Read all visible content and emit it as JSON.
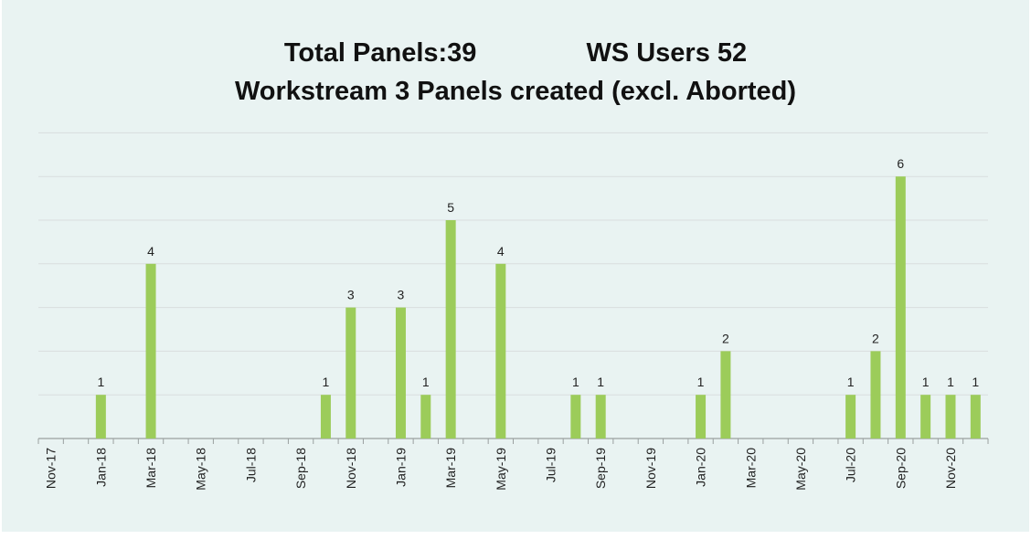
{
  "title": {
    "total_panels": "Total Panels:39",
    "ws_users": "WS Users 52",
    "subtitle": "Workstream 3 Panels created (excl. Aborted)"
  },
  "colors": {
    "bar": "#9ccc5a",
    "grid": "#d9dede",
    "axis": "#9aa0a0",
    "text": "#222222"
  },
  "chart_data": {
    "type": "bar",
    "title": "Workstream 3 Panels created (excl. Aborted)",
    "xlabel": "",
    "ylabel": "",
    "ylim": [
      0,
      7
    ],
    "grid": true,
    "legend": "none",
    "categories": [
      "Nov-17",
      "Dec-17",
      "Jan-18",
      "Feb-18",
      "Mar-18",
      "Apr-18",
      "May-18",
      "Jun-18",
      "Jul-18",
      "Aug-18",
      "Sep-18",
      "Oct-18",
      "Nov-18",
      "Dec-18",
      "Jan-19",
      "Feb-19",
      "Mar-19",
      "Apr-19",
      "May-19",
      "Jun-19",
      "Jul-19",
      "Aug-19",
      "Sep-19",
      "Oct-19",
      "Nov-19",
      "Dec-19",
      "Jan-20",
      "Feb-20",
      "Mar-20",
      "Apr-20",
      "May-20",
      "Jun-20",
      "Jul-20",
      "Aug-20",
      "Sep-20",
      "Oct-20",
      "Nov-20",
      "Dec-20"
    ],
    "tick_labels": [
      "Nov-17",
      "Jan-18",
      "Mar-18",
      "May-18",
      "Jul-18",
      "Sep-18",
      "Nov-18",
      "Jan-19",
      "Mar-19",
      "May-19",
      "Jul-19",
      "Sep-19",
      "Nov-19",
      "Jan-20",
      "Mar-20",
      "May-20",
      "Jul-20",
      "Sep-20",
      "Nov-20"
    ],
    "values": [
      0,
      0,
      1,
      0,
      4,
      0,
      0,
      0,
      0,
      0,
      0,
      1,
      3,
      0,
      3,
      1,
      5,
      0,
      4,
      0,
      0,
      1,
      1,
      0,
      0,
      0,
      1,
      2,
      0,
      0,
      0,
      0,
      1,
      2,
      6,
      1,
      1,
      1
    ]
  }
}
